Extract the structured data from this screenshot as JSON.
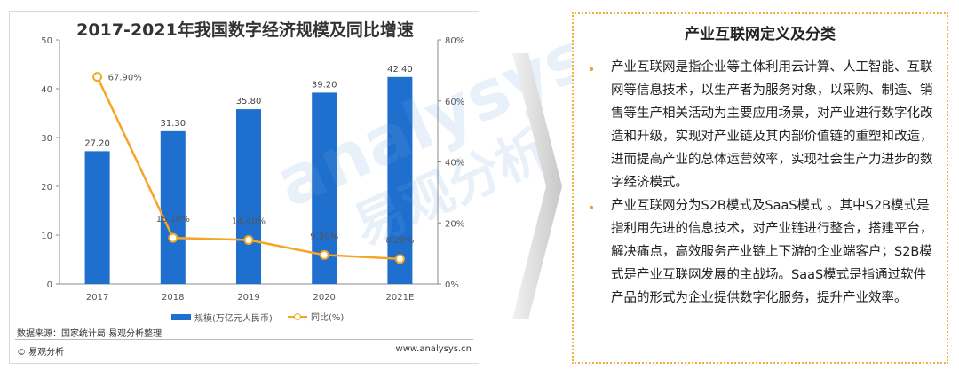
{
  "chart_data": {
    "type": "bar+line",
    "title": "2017-2021年我国数字经济规模及同比增速",
    "categories": [
      "2017",
      "2018",
      "2019",
      "2020",
      "2021E"
    ],
    "series": [
      {
        "name": "规模(万亿元人民币)",
        "type": "bar",
        "axis": "left",
        "values": [
          27.2,
          31.3,
          35.8,
          39.2,
          42.4
        ],
        "labels": [
          "27.20",
          "31.30",
          "35.80",
          "39.20",
          "42.40"
        ]
      },
      {
        "name": "同比(%)",
        "type": "line",
        "axis": "right",
        "values": [
          67.9,
          15.1,
          14.4,
          9.5,
          8.2
        ],
        "labels": [
          "67.90%",
          "15.10%",
          "14.40%",
          "9.50%",
          "8.20%"
        ]
      }
    ],
    "y_left": {
      "min": 0,
      "max": 50,
      "ticks": [
        "0",
        "10",
        "20",
        "30",
        "40",
        "50"
      ]
    },
    "y_right": {
      "min": 0,
      "max": 80,
      "ticks": [
        "0%",
        "20%",
        "40%",
        "60%",
        "80%"
      ]
    },
    "legend_position": "bottom",
    "colors": {
      "bar": "#1f6fce",
      "line": "#f5a623"
    }
  },
  "chart_footer": {
    "source": "数据来源：国家统计局·易观分析整理",
    "copyright": "© 易观分析",
    "site": "www.analysys.cn"
  },
  "watermark": {
    "text": "analysys",
    "text_cn": "易观分析"
  },
  "panel": {
    "title": "产业互联网定义及分类",
    "paragraphs": [
      "产业互联网是指企业等主体利用云计算、人工智能、互联网等信息技术，以生产者为服务对象，以采购、制造、销售等生产相关活动为主要应用场景，对产业进行数字化改造和升级，实现对产业链及其内部价值链的重塑和改造，进而提高产业的总体运营效率，实现社会生产力进步的数字经济模式。",
      "产业互联网分为S2B模式及SaaS模式 。其中S2B模式是指利用先进的信息技术，对产业链进行整合，搭建平台，解决痛点，高效服务产业链上下游的企业端客户；S2B模式是产业互联网发展的主战场。SaaS模式是指通过软件产品的形式为企业提供数字化服务，提升产业效率。"
    ]
  }
}
